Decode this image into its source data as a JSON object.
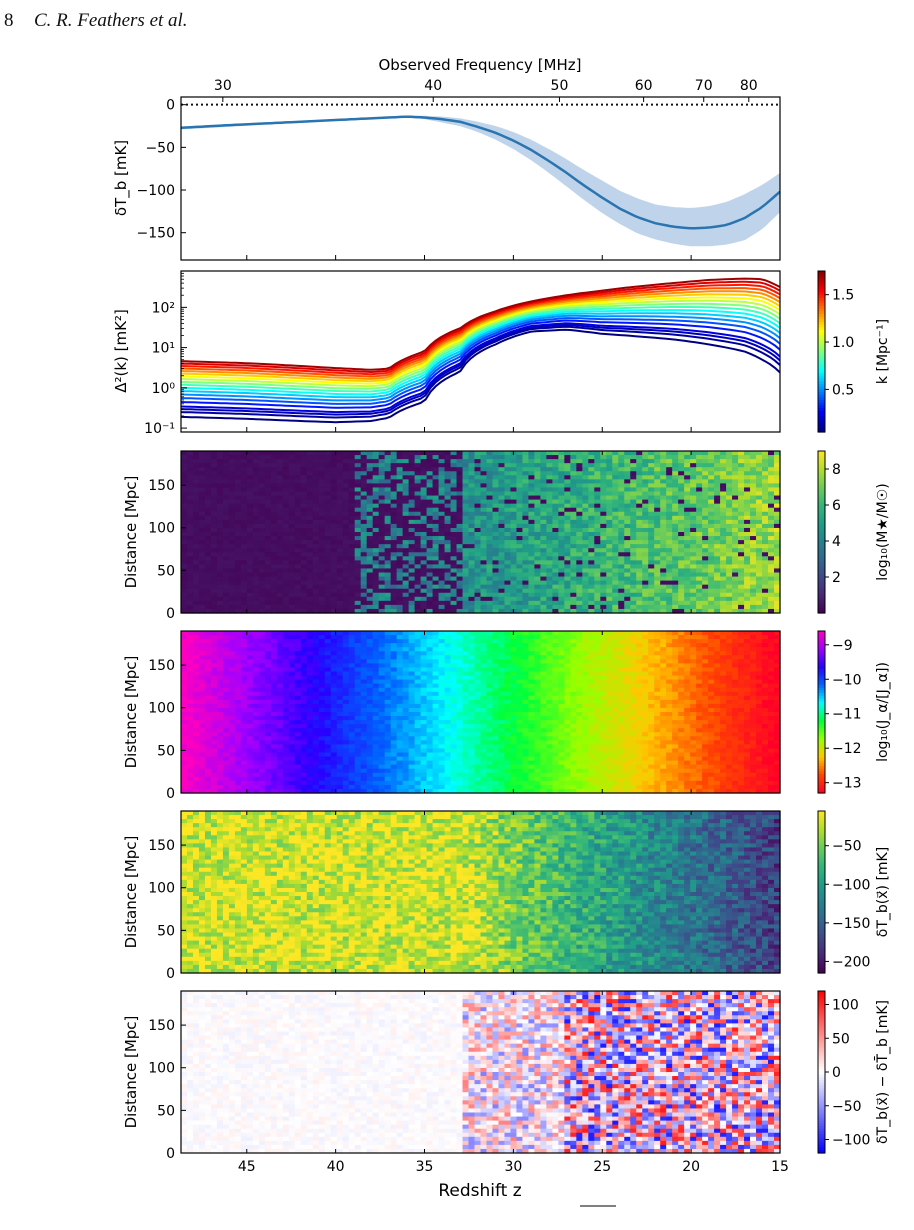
{
  "header": {
    "page_number": "8",
    "authors": "C. R. Feathers et al."
  },
  "chart_data": [
    {
      "type": "line",
      "panel": "brightness-temperature",
      "xlabel_top": "Observed Frequency [MHz]",
      "top_ticks": [
        30,
        40,
        50,
        60,
        70,
        80
      ],
      "ylabel": "δT_b [mK]",
      "ylim": [
        -182,
        9
      ],
      "yticks": [
        0,
        -50,
        -100,
        -150
      ],
      "xlim": [
        48.7,
        15
      ],
      "reference_line": 0,
      "series": [
        {
          "z": [
            48.7,
            46,
            43,
            40,
            38,
            36,
            35,
            34,
            33,
            32,
            31,
            30,
            29,
            28,
            27,
            26,
            25,
            24,
            23,
            22,
            21,
            20,
            19,
            18,
            17,
            16,
            15
          ],
          "y": [
            -27,
            -24,
            -21,
            -18,
            -16,
            -14,
            -15,
            -17,
            -20,
            -26,
            -33,
            -42,
            -53,
            -66,
            -80,
            -95,
            -109,
            -122,
            -132,
            -139,
            -143,
            -145,
            -144,
            -141,
            -133,
            -120,
            -102
          ]
        },
        {
          "name": "upper",
          "z": [
            48.7,
            46,
            43,
            40,
            38,
            36,
            35,
            34,
            33,
            32,
            31,
            30,
            29,
            28,
            27,
            26,
            25,
            24,
            23,
            22,
            21,
            20,
            19,
            18,
            17,
            16,
            15
          ],
          "y": [
            -26,
            -23,
            -20,
            -17,
            -15,
            -13,
            -13,
            -14,
            -16,
            -20,
            -25,
            -32,
            -41,
            -52,
            -64,
            -77,
            -89,
            -101,
            -110,
            -117,
            -120,
            -121,
            -119,
            -114,
            -105,
            -94,
            -80
          ]
        },
        {
          "name": "lower",
          "z": [
            48.7,
            46,
            43,
            40,
            38,
            36,
            35,
            34,
            33,
            32,
            31,
            30,
            29,
            28,
            27,
            26,
            25,
            24,
            23,
            22,
            21,
            20,
            19,
            18,
            17,
            16,
            15
          ],
          "y": [
            -29,
            -26,
            -22,
            -19,
            -17,
            -15,
            -17,
            -21,
            -25,
            -32,
            -41,
            -52,
            -65,
            -80,
            -96,
            -112,
            -127,
            -140,
            -151,
            -158,
            -163,
            -166,
            -166,
            -164,
            -159,
            -146,
            -126
          ]
        }
      ]
    },
    {
      "type": "line",
      "panel": "power-spectrum",
      "ylabel": "Δ²(k) [mK²]",
      "yscale": "log",
      "ylim": [
        0.08,
        800
      ],
      "yticks": [
        "10⁻¹",
        "10⁰",
        "10¹",
        "10²"
      ],
      "colorbar": {
        "label": "k [Mpc⁻¹]",
        "ticks": [
          "0.5",
          "1.0",
          "1.5"
        ],
        "range": [
          0.05,
          1.75
        ],
        "colormap": "jet"
      },
      "k_values": [
        0.05,
        0.1,
        0.15,
        0.2,
        0.3,
        0.4,
        0.5,
        0.6,
        0.7,
        0.8,
        0.9,
        1.0,
        1.1,
        1.2,
        1.3,
        1.4,
        1.5,
        1.6,
        1.7
      ],
      "curve_model": {
        "z": [
          48.7,
          45,
          42,
          40,
          38,
          37,
          35,
          33,
          31,
          29,
          27,
          25,
          23,
          21,
          19,
          17,
          16,
          15
        ],
        "low_k_curve": [
          0.19,
          0.17,
          0.15,
          0.14,
          0.15,
          0.18,
          0.45,
          2.5,
          12,
          25,
          28,
          22,
          19,
          16,
          12,
          8,
          5,
          2.4
        ],
        "high_k_curve": [
          4.6,
          4.1,
          3.5,
          3.1,
          2.8,
          3.0,
          8,
          30,
          80,
          140,
          200,
          260,
          330,
          400,
          480,
          520,
          500,
          320
        ]
      }
    },
    {
      "type": "heatmap",
      "panel": "stellar-mass",
      "ylabel": "Distance [Mpc]",
      "yticks": [
        0,
        50,
        100,
        150
      ],
      "colorbar": {
        "label": "log₁₀(M★/M☉)",
        "ticks": [
          "2",
          "4",
          "6",
          "8"
        ],
        "range": [
          0,
          9
        ],
        "colormap": "viridis"
      }
    },
    {
      "type": "heatmap",
      "panel": "lyman-alpha",
      "ylabel": "Distance [Mpc]",
      "yticks": [
        0,
        50,
        100,
        150
      ],
      "colorbar": {
        "label": "log₁₀(J_α/[J_α])",
        "ticks": [
          "−9",
          "−10",
          "−11",
          "−12",
          "−13"
        ],
        "range": [
          -13.3,
          -8.6
        ],
        "colormap": "gist_rainbow"
      }
    },
    {
      "type": "heatmap",
      "panel": "brightness-map",
      "ylabel": "Distance [Mpc]",
      "yticks": [
        0,
        50,
        100,
        150
      ],
      "colorbar": {
        "label": "δT_b(x⃗) [mK]",
        "ticks": [
          "−50",
          "−100",
          "−150",
          "−200"
        ],
        "range": [
          -215,
          -5
        ],
        "colormap": "viridis"
      }
    },
    {
      "type": "heatmap",
      "panel": "residual-map",
      "ylabel": "Distance [Mpc]",
      "yticks": [
        0,
        50,
        100,
        150
      ],
      "xlabel": "Redshift z",
      "xticks": [
        45,
        40,
        35,
        30,
        25,
        20,
        15
      ],
      "colorbar": {
        "label": "δT_b(x⃗) − δT̄_b [mK]",
        "ticks": [
          "100",
          "50",
          "0",
          "−50",
          "−100"
        ],
        "range": [
          -120,
          120
        ],
        "colormap": "bwr"
      }
    }
  ]
}
